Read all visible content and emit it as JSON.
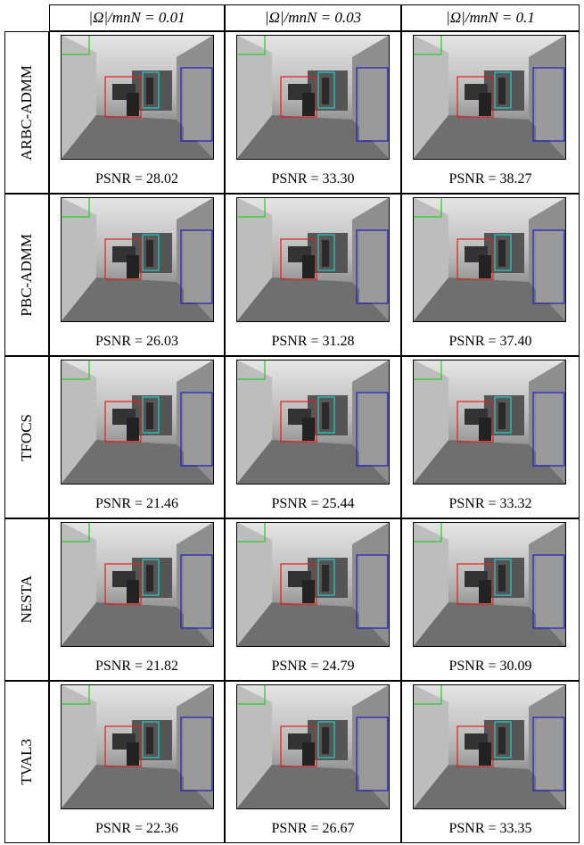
{
  "table": {
    "columns": [
      "|Ω|/mnN = 0.01",
      "|Ω|/mnN = 0.03",
      "|Ω|/mnN = 0.1"
    ],
    "rows": [
      {
        "method": "ARBC-ADMM",
        "cells": [
          "PSNR = 28.02",
          "PSNR = 33.30",
          "PSNR = 38.27"
        ]
      },
      {
        "method": "PBC-ADMM",
        "cells": [
          "PSNR = 26.03",
          "PSNR = 31.28",
          "PSNR = 37.40"
        ]
      },
      {
        "method": "TFOCS",
        "cells": [
          "PSNR = 21.46",
          "PSNR = 25.44",
          "PSNR = 33.32"
        ]
      },
      {
        "method": "NESTA",
        "cells": [
          "PSNR = 21.82",
          "PSNR = 24.79",
          "PSNR = 30.09"
        ]
      },
      {
        "method": "TVAL3",
        "cells": [
          "PSNR = 22.36",
          "PSNR = 26.67",
          "PSNR = 33.35"
        ]
      }
    ]
  }
}
